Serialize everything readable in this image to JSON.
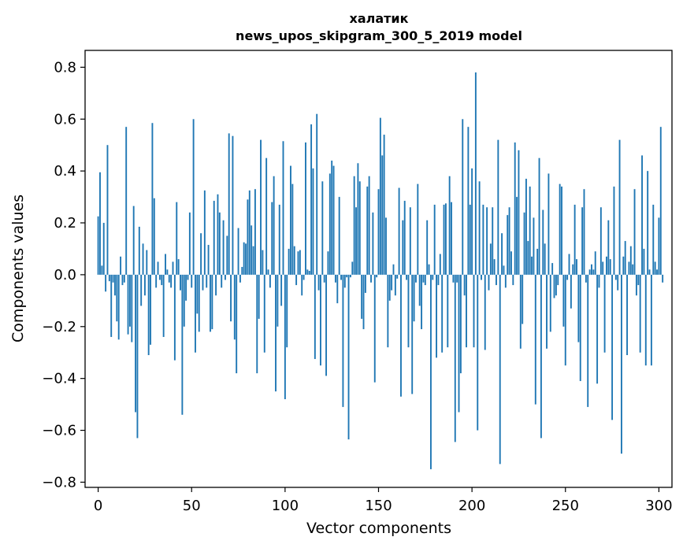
{
  "chart_data": {
    "type": "bar",
    "title": "халатик",
    "subtitle": "news_upos_skipgram_300_5_2019 model",
    "xlabel": "Vector components",
    "ylabel": "Components values",
    "xlim": [
      -7,
      307
    ],
    "ylim": [
      -0.82,
      0.865
    ],
    "xticks": [
      0,
      50,
      100,
      150,
      200,
      250,
      300
    ],
    "yticks": [
      -0.8,
      -0.6,
      -0.4,
      -0.2,
      0.0,
      0.2,
      0.4,
      0.6,
      0.8
    ],
    "ytick_labels": [
      "−0.8",
      "−0.6",
      "−0.4",
      "−0.2",
      "0.0",
      "0.2",
      "0.4",
      "0.6",
      "0.8"
    ],
    "bar_color": "#1f77b4",
    "values": [
      0.225,
      0.395,
      0.035,
      0.2,
      -0.065,
      0.5,
      -0.025,
      -0.24,
      -0.03,
      -0.08,
      -0.18,
      -0.25,
      0.07,
      -0.04,
      -0.03,
      0.57,
      -0.23,
      -0.2,
      -0.26,
      0.265,
      -0.53,
      -0.63,
      0.185,
      -0.12,
      0.12,
      -0.08,
      0.095,
      -0.31,
      -0.27,
      0.585,
      0.295,
      -0.05,
      0.05,
      -0.02,
      -0.04,
      -0.24,
      0.08,
      0.02,
      -0.03,
      -0.05,
      0.05,
      -0.33,
      0.28,
      0.06,
      -0.06,
      -0.54,
      -0.2,
      -0.1,
      -0.02,
      0.24,
      -0.05,
      0.6,
      -0.3,
      -0.15,
      -0.22,
      0.16,
      -0.06,
      0.325,
      -0.05,
      0.115,
      -0.22,
      -0.21,
      0.285,
      -0.08,
      0.31,
      0.24,
      -0.05,
      0.21,
      -0.02,
      0.15,
      0.545,
      -0.18,
      0.535,
      -0.25,
      -0.38,
      0.18,
      -0.03,
      0.03,
      0.125,
      0.12,
      0.29,
      0.325,
      0.19,
      0.11,
      0.33,
      -0.38,
      -0.17,
      0.52,
      0.095,
      -0.3,
      0.45,
      0.02,
      -0.05,
      0.28,
      0.38,
      -0.45,
      -0.2,
      0.27,
      -0.12,
      0.515,
      -0.48,
      -0.28,
      0.1,
      0.42,
      0.35,
      0.11,
      -0.04,
      0.09,
      0.095,
      -0.08,
      -0.02,
      0.51,
      0.02,
      0.015,
      0.58,
      0.41,
      -0.325,
      0.62,
      -0.06,
      -0.35,
      0.36,
      -0.03,
      -0.39,
      0.09,
      0.39,
      0.44,
      0.42,
      -0.03,
      -0.11,
      0.3,
      -0.02,
      -0.51,
      -0.05,
      -0.01,
      -0.635,
      -0.01,
      0.05,
      0.38,
      0.26,
      0.43,
      0.36,
      -0.17,
      -0.21,
      -0.07,
      0.34,
      0.38,
      -0.03,
      0.24,
      -0.415,
      -0.01,
      0.33,
      0.605,
      0.46,
      0.54,
      0.22,
      -0.28,
      -0.1,
      -0.06,
      0.04,
      -0.08,
      -0.015,
      0.335,
      -0.47,
      0.21,
      0.285,
      -0.02,
      -0.28,
      0.26,
      -0.46,
      -0.18,
      -0.03,
      0.35,
      -0.12,
      -0.21,
      -0.03,
      -0.04,
      0.21,
      0.04,
      -0.75,
      -0.02,
      0.27,
      -0.32,
      -0.04,
      0.08,
      -0.3,
      0.27,
      0.275,
      -0.28,
      0.38,
      0.28,
      -0.03,
      -0.645,
      -0.03,
      -0.53,
      -0.38,
      0.6,
      -0.08,
      -0.28,
      0.57,
      0.27,
      0.41,
      -0.28,
      0.78,
      -0.6,
      0.36,
      -0.02,
      0.27,
      -0.29,
      0.26,
      -0.06,
      0.12,
      0.26,
      0.06,
      -0.04,
      0.52,
      -0.73,
      0.16,
      0.035,
      -0.05,
      0.23,
      0.26,
      0.09,
      -0.04,
      0.51,
      0.3,
      0.48,
      -0.285,
      -0.19,
      0.24,
      0.37,
      0.13,
      0.34,
      0.07,
      0.22,
      -0.5,
      0.1,
      0.45,
      -0.63,
      0.25,
      0.12,
      -0.285,
      0.39,
      -0.22,
      0.045,
      -0.09,
      -0.08,
      -0.04,
      0.35,
      0.34,
      -0.2,
      -0.35,
      -0.02,
      0.08,
      -0.13,
      0.04,
      0.27,
      0.06,
      -0.26,
      -0.41,
      0.26,
      0.33,
      -0.03,
      -0.51,
      0.02,
      0.04,
      0.02,
      0.09,
      -0.42,
      -0.05,
      0.26,
      0.05,
      -0.3,
      0.07,
      0.21,
      0.06,
      -0.56,
      0.34,
      -0.02,
      -0.06,
      0.52,
      -0.69,
      0.07,
      0.13,
      -0.31,
      0.05,
      0.11,
      0.04,
      0.33,
      -0.08,
      -0.04,
      -0.3,
      0.46,
      0.1,
      -0.35,
      0.4,
      0.02,
      -0.35,
      0.27,
      0.05,
      0.02,
      0.22,
      0.57,
      -0.03
    ]
  }
}
